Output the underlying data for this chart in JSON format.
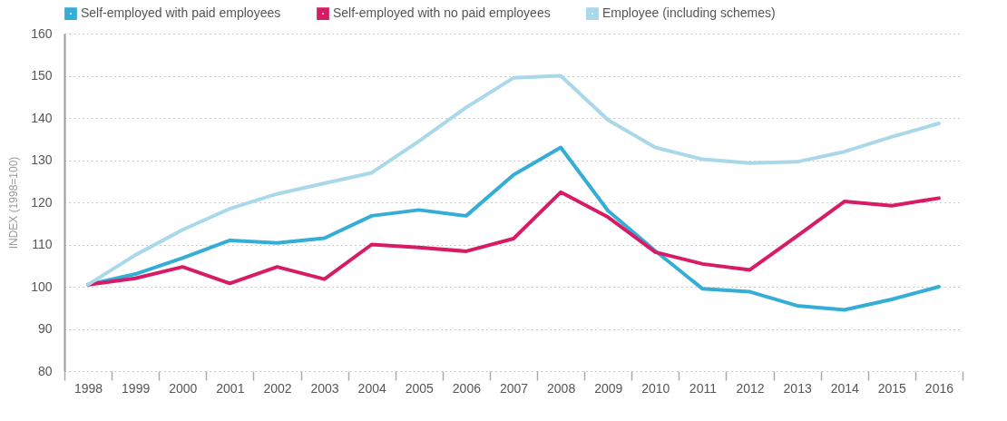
{
  "chart_data": {
    "type": "line",
    "ylabel": "INDEX (1998=100)",
    "categories": [
      "1998",
      "1999",
      "2000",
      "2001",
      "2002",
      "2003",
      "2004",
      "2005",
      "2006",
      "2007",
      "2008",
      "2009",
      "2010",
      "2011",
      "2012",
      "2013",
      "2014",
      "2015",
      "2016"
    ],
    "series": [
      {
        "name": "Self-employed with paid employees",
        "color": "#34aed6",
        "values": [
          100.5,
          103,
          106.8,
          111,
          110.4,
          111.5,
          116.8,
          118.2,
          116.8,
          126.5,
          133,
          118,
          108.5,
          99.5,
          98.8,
          95.5,
          94.5,
          97,
          100
        ]
      },
      {
        "name": "Self-employed with no paid employees",
        "color": "#d81b65",
        "values": [
          100.5,
          102,
          104.7,
          100.8,
          104.7,
          101.8,
          110,
          109.3,
          108.4,
          111.4,
          122.4,
          116.5,
          108.2,
          105.4,
          104,
          112,
          120.2,
          119.2,
          121
        ]
      },
      {
        "name": "Employee (including schemes)",
        "color": "#a8d8ea",
        "values": [
          100.5,
          107.5,
          113.5,
          118.5,
          122,
          124.5,
          127,
          134.5,
          142.5,
          149.5,
          150,
          139.5,
          133,
          130.2,
          129.3,
          129.6,
          132,
          135.5,
          138.7
        ]
      }
    ],
    "ylim": [
      80,
      160
    ],
    "yticks": [
      80,
      90,
      100,
      110,
      120,
      130,
      140,
      150,
      160
    ],
    "grid": "y",
    "legend": "top",
    "marker": "none",
    "line_style": "solid"
  }
}
